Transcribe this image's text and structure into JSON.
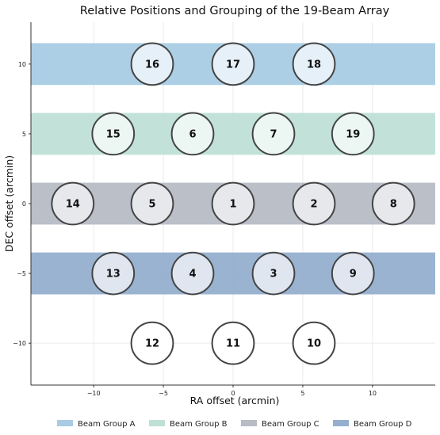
{
  "chart_data": {
    "type": "scatter",
    "title": "Relative Positions and Grouping of the 19-Beam Array",
    "xlabel": "RA offset (arcmin)",
    "ylabel": "DEC offset (arcmin)",
    "xlim": [
      -14.5,
      14.5
    ],
    "ylim": [
      -13,
      13
    ],
    "xticks": [
      -10,
      -5,
      0,
      5,
      10
    ],
    "yticks": [
      -10,
      -5,
      0,
      5,
      10
    ],
    "grid": true,
    "legend_position": "bottom",
    "beam_radius": 1.5,
    "groups": [
      {
        "name": "Beam Group A",
        "y_center": 10,
        "half_height": 1.5,
        "color": "#a8cce4",
        "beam_fill": "#e6f0f8"
      },
      {
        "name": "Beam Group B",
        "y_center": 5,
        "half_height": 1.5,
        "color": "#bfe0d7",
        "beam_fill": "#ecf6f3"
      },
      {
        "name": "Beam Group C",
        "y_center": 0,
        "half_height": 1.5,
        "color": "#b7bcc5",
        "beam_fill": "#e6e8ec"
      },
      {
        "name": "Beam Group D",
        "y_center": -5,
        "half_height": 1.5,
        "color": "#95afcf",
        "beam_fill": "#dfe6f0"
      }
    ],
    "beams": [
      {
        "id": "16",
        "x": -5.8,
        "y": 10,
        "group": 0
      },
      {
        "id": "17",
        "x": 0,
        "y": 10,
        "group": 0
      },
      {
        "id": "18",
        "x": 5.8,
        "y": 10,
        "group": 0
      },
      {
        "id": "15",
        "x": -8.6,
        "y": 5,
        "group": 1
      },
      {
        "id": "6",
        "x": -2.9,
        "y": 5,
        "group": 1
      },
      {
        "id": "7",
        "x": 2.9,
        "y": 5,
        "group": 1
      },
      {
        "id": "19",
        "x": 8.6,
        "y": 5,
        "group": 1
      },
      {
        "id": "14",
        "x": -11.5,
        "y": 0,
        "group": 2
      },
      {
        "id": "5",
        "x": -5.8,
        "y": 0,
        "group": 2
      },
      {
        "id": "1",
        "x": 0,
        "y": 0,
        "group": 2
      },
      {
        "id": "2",
        "x": 5.8,
        "y": 0,
        "group": 2
      },
      {
        "id": "8",
        "x": 11.5,
        "y": 0,
        "group": 2
      },
      {
        "id": "13",
        "x": -8.6,
        "y": -5,
        "group": 3
      },
      {
        "id": "4",
        "x": -2.9,
        "y": -5,
        "group": 3
      },
      {
        "id": "3",
        "x": 2.9,
        "y": -5,
        "group": 3
      },
      {
        "id": "9",
        "x": 8.6,
        "y": -5,
        "group": 3
      },
      {
        "id": "12",
        "x": -5.8,
        "y": -10,
        "group": null
      },
      {
        "id": "11",
        "x": 0,
        "y": -10,
        "group": null
      },
      {
        "id": "10",
        "x": 5.8,
        "y": -10,
        "group": null
      }
    ]
  }
}
